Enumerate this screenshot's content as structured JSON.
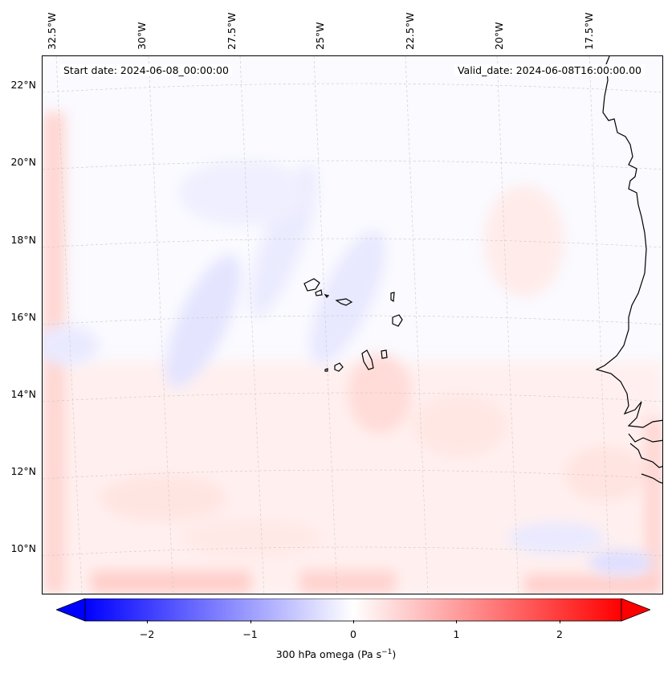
{
  "map": {
    "start_date_label": "Start date: 2024-06-08_00:00:00",
    "valid_date_label": "Valid_date: 2024-06-08T16:00:00.00",
    "lon_labels": [
      "32.5°W",
      "30°W",
      "27.5°W",
      "25°W",
      "22.5°W",
      "20°W",
      "17.5°W"
    ],
    "lat_labels": [
      "22°N",
      "20°N",
      "18°N",
      "16°N",
      "14°N",
      "12°N",
      "10°N"
    ],
    "gridlines": "dashed-gray",
    "projection": "lambert-conformal",
    "field": "300 hPa omega",
    "coastline_color": "#000000",
    "islands": [
      "Cape Verde islands"
    ],
    "mainland": "West African coast (Mauritania, Senegal, Gambia, Guinea-Bissau)"
  },
  "colorbar": {
    "label_prefix": "300 hPa omega (Pa s",
    "label_sup": "−1",
    "label_suffix": ")",
    "ticks": [
      "−2",
      "−1",
      "0",
      "1",
      "2"
    ],
    "range": [
      -2.6,
      2.6
    ],
    "colormap": "bwr",
    "low_color": "#0000ff",
    "mid_color": "#ffffff",
    "high_color": "#ff0000",
    "extend": "both"
  }
}
